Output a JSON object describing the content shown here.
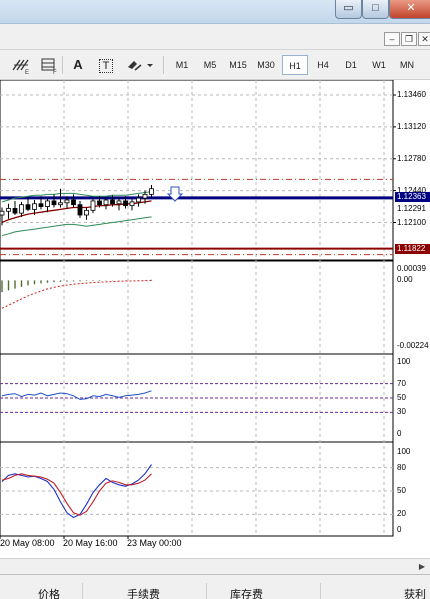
{
  "window": {
    "min_glyph": "▭",
    "max_glyph": "□",
    "close_glyph": "✕",
    "mdi_min_glyph": "‒",
    "mdi_restore_glyph": "❐",
    "mdi_close_glyph": "✕"
  },
  "toolbar": {
    "icons": [
      "fibonacci-tool-icon",
      "text-label-icon",
      "text-box-icon",
      "arrows-icon",
      "dropdown-arrow-icon"
    ],
    "text_tool": "A",
    "text_box_tool": "T",
    "timeframes": [
      "M1",
      "M5",
      "M15",
      "M30",
      "H1",
      "H4",
      "D1",
      "W1",
      "MN"
    ],
    "active_timeframe": "H1"
  },
  "price_axis": {
    "labels": [
      "1.13460",
      "1.13120",
      "1.12780",
      "1.12440",
      "1.12100"
    ],
    "current_bid_tag": "1.12363",
    "second_tag": "1.12291",
    "lower_tag": "1.11822",
    "colors": {
      "bid_line": "#000080",
      "lower_line": "#8b0000",
      "dashed_level": "#c0392b"
    }
  },
  "macd_axis": {
    "labels": [
      "0.00039",
      "0.00",
      "-0.00224"
    ]
  },
  "rsi_axis": {
    "labels": [
      "100",
      "70",
      "50",
      "30",
      "0"
    ]
  },
  "stoch_axis": {
    "labels": [
      "100",
      "80",
      "50",
      "20",
      "0"
    ]
  },
  "time_axis": {
    "labels": [
      "20 May 08:00",
      "20 May 16:00",
      "23 May 00:00"
    ]
  },
  "terminal_tabs": [
    "价格",
    "手续费",
    "库存费",
    "获利"
  ],
  "chart_data": [
    {
      "type": "candlestick",
      "title": "",
      "price_range": [
        1.117,
        1.1362
      ],
      "candles": [
        {
          "o": 1.1218,
          "h": 1.1226,
          "l": 1.1207,
          "c": 1.1222
        },
        {
          "o": 1.1222,
          "h": 1.123,
          "l": 1.1214,
          "c": 1.1225
        },
        {
          "o": 1.1225,
          "h": 1.1233,
          "l": 1.1218,
          "c": 1.122
        },
        {
          "o": 1.122,
          "h": 1.1232,
          "l": 1.1216,
          "c": 1.1229
        },
        {
          "o": 1.1229,
          "h": 1.1236,
          "l": 1.1222,
          "c": 1.1224
        },
        {
          "o": 1.1224,
          "h": 1.1234,
          "l": 1.1218,
          "c": 1.123
        },
        {
          "o": 1.123,
          "h": 1.1238,
          "l": 1.1224,
          "c": 1.1227
        },
        {
          "o": 1.1227,
          "h": 1.1236,
          "l": 1.1221,
          "c": 1.1233
        },
        {
          "o": 1.1233,
          "h": 1.124,
          "l": 1.1226,
          "c": 1.1229
        },
        {
          "o": 1.1229,
          "h": 1.1246,
          "l": 1.1226,
          "c": 1.1231
        },
        {
          "o": 1.1231,
          "h": 1.1238,
          "l": 1.1225,
          "c": 1.1234
        },
        {
          "o": 1.1234,
          "h": 1.124,
          "l": 1.1226,
          "c": 1.1229
        },
        {
          "o": 1.1229,
          "h": 1.1233,
          "l": 1.1215,
          "c": 1.1218
        },
        {
          "o": 1.1218,
          "h": 1.1226,
          "l": 1.1213,
          "c": 1.1223
        },
        {
          "o": 1.1223,
          "h": 1.1236,
          "l": 1.122,
          "c": 1.1233
        },
        {
          "o": 1.1233,
          "h": 1.1238,
          "l": 1.1226,
          "c": 1.1229
        },
        {
          "o": 1.1229,
          "h": 1.1237,
          "l": 1.1224,
          "c": 1.1234
        },
        {
          "o": 1.1234,
          "h": 1.1239,
          "l": 1.1227,
          "c": 1.123
        },
        {
          "o": 1.123,
          "h": 1.1236,
          "l": 1.1223,
          "c": 1.1233
        },
        {
          "o": 1.1233,
          "h": 1.1238,
          "l": 1.1225,
          "c": 1.1228
        },
        {
          "o": 1.1228,
          "h": 1.1235,
          "l": 1.1223,
          "c": 1.1232
        },
        {
          "o": 1.1232,
          "h": 1.124,
          "l": 1.1227,
          "c": 1.1236
        },
        {
          "o": 1.1236,
          "h": 1.1244,
          "l": 1.123,
          "c": 1.124
        },
        {
          "o": 1.124,
          "h": 1.125,
          "l": 1.1236,
          "c": 1.1246
        }
      ]
    },
    {
      "type": "line",
      "title": "",
      "series": [
        {
          "color": "#8b0000",
          "values": [
            1.121,
            1.1213,
            1.1215,
            1.1217,
            1.1219,
            1.122,
            1.1221,
            1.1222,
            1.1223,
            1.1224,
            1.1225,
            1.1226,
            1.1226,
            1.1226,
            1.1227,
            1.1228,
            1.1228,
            1.1229,
            1.1229,
            1.123,
            1.123,
            1.1231,
            1.1232,
            1.1233
          ]
        },
        {
          "color": "#2e8b57",
          "values": [
            1.1232,
            1.1234,
            1.1236,
            1.1237,
            1.1238,
            1.1239,
            1.1239,
            1.124,
            1.124,
            1.1241,
            1.1241,
            1.1241,
            1.124,
            1.1239,
            1.1238,
            1.1238,
            1.1238,
            1.1239,
            1.1239,
            1.1239,
            1.124,
            1.1241,
            1.1242,
            1.1243
          ]
        },
        {
          "color": "#2e8b57",
          "values": [
            1.1196,
            1.1198,
            1.12,
            1.1201,
            1.1202,
            1.1203,
            1.1204,
            1.1205,
            1.1206,
            1.1207,
            1.1208,
            1.1208,
            1.1207,
            1.1206,
            1.1207,
            1.1208,
            1.1209,
            1.121,
            1.1211,
            1.1212,
            1.1213,
            1.1214,
            1.1215,
            1.1216
          ]
        }
      ]
    },
    {
      "type": "bar",
      "title": "",
      "y_range": [
        -0.00224,
        0.00039
      ],
      "values": [
        -0.0004,
        -0.00034,
        -0.00028,
        -0.00022,
        -0.00017,
        -0.00013,
        -0.0001,
        -8e-05,
        -6e-05,
        -5e-05,
        -4e-05,
        -3e-05,
        -3e-05,
        -2e-05,
        -2e-05,
        -2e-05,
        -1e-05,
        -1e-05,
        -1e-05,
        -1e-05,
        0.0,
        0.0,
        1e-05,
        2e-05
      ],
      "signal": [
        -0.00095,
        -0.00085,
        -0.00074,
        -0.00063,
        -0.00053,
        -0.00044,
        -0.00036,
        -0.00029,
        -0.00024,
        -0.00019,
        -0.00016,
        -0.00013,
        -0.00011,
        -9e-05,
        -7e-05,
        -6e-05,
        -5e-05,
        -4e-05,
        -3e-05,
        -2e-05,
        -2e-05,
        -1e-05,
        -1e-05,
        0.0
      ]
    },
    {
      "type": "line",
      "title": "",
      "y_range": [
        0,
        100
      ],
      "levels": [
        70,
        50,
        30
      ],
      "series": [
        {
          "color": "#1e50c8",
          "values": [
            53,
            55,
            56,
            52,
            55,
            54,
            57,
            53,
            55,
            57,
            56,
            53,
            48,
            49,
            53,
            52,
            55,
            53,
            51,
            53,
            54,
            55,
            57,
            60
          ]
        }
      ]
    },
    {
      "type": "line",
      "title": "",
      "y_range": [
        0,
        100
      ],
      "levels": [
        80,
        50,
        20
      ],
      "series": [
        {
          "color": "#1e32c8",
          "values": [
            62,
            70,
            72,
            70,
            68,
            69,
            66,
            62,
            52,
            36,
            22,
            16,
            20,
            33,
            48,
            58,
            66,
            61,
            58,
            56,
            59,
            64,
            72,
            84
          ]
        },
        {
          "color": "#c0202a",
          "values": [
            64,
            66,
            70,
            72,
            70,
            69,
            68,
            65,
            60,
            48,
            34,
            22,
            19,
            24,
            36,
            50,
            60,
            63,
            61,
            58,
            58,
            60,
            64,
            72
          ]
        }
      ]
    }
  ]
}
